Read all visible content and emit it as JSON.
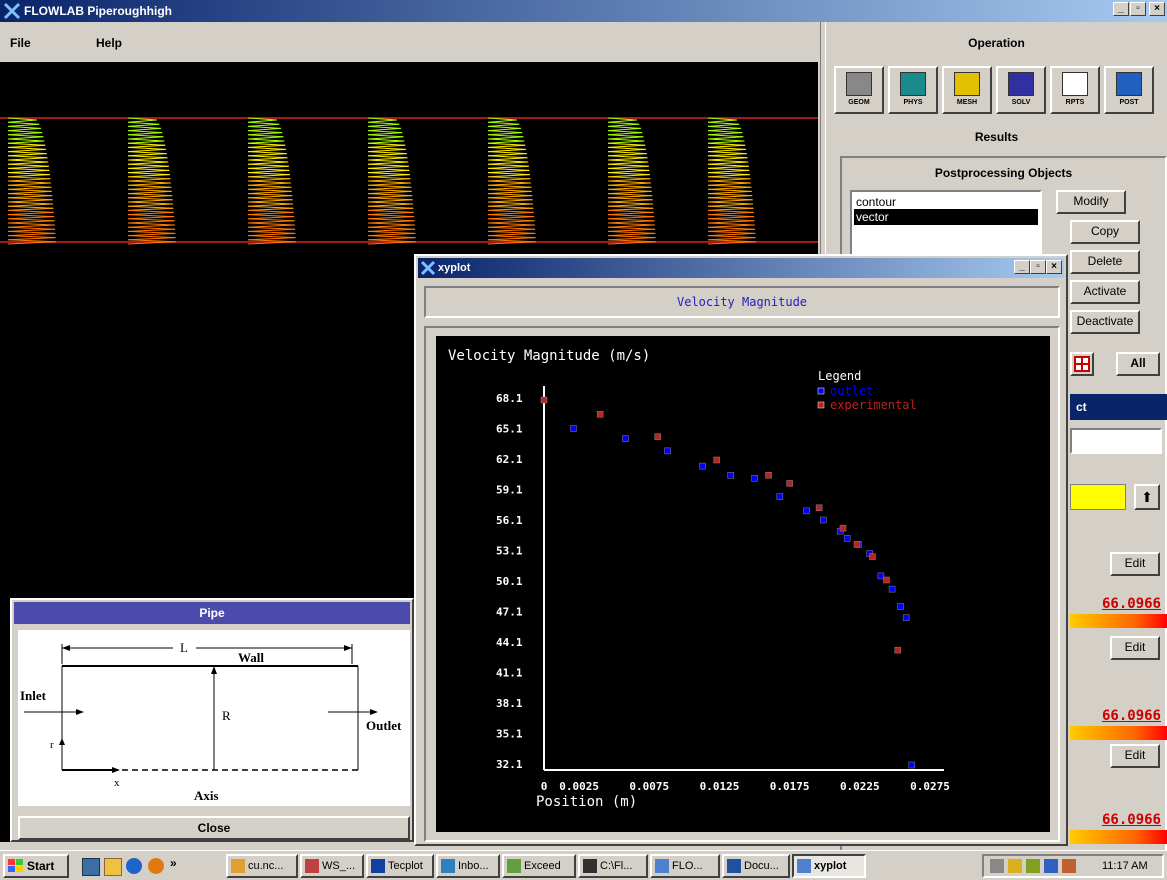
{
  "app": {
    "title": "FLOWLAB  Piperoughhigh",
    "menu": [
      "File",
      "Help"
    ]
  },
  "operation": {
    "title": "Operation",
    "tools": [
      {
        "label": "GEOM",
        "icon": "cube-icon"
      },
      {
        "label": "PHYS",
        "icon": "physics-icon"
      },
      {
        "label": "MESH",
        "icon": "mesh-icon"
      },
      {
        "label": "SOLV",
        "icon": "solver-icon"
      },
      {
        "label": "RPTS",
        "icon": "reports-icon"
      },
      {
        "label": "POST",
        "icon": "post-icon"
      }
    ],
    "results_title": "Results",
    "post_objects_title": "Postprocessing Objects",
    "objects": [
      "contour",
      "vector"
    ],
    "selected_object": "vector",
    "buttons": {
      "modify": "Modify",
      "copy": "Copy",
      "delete": "Delete",
      "activate": "Activate",
      "deactivate": "Deactivate"
    },
    "all_label": "All",
    "partial_header": "ct",
    "edit_label": "Edit",
    "values": [
      "66.0966",
      "66.0966",
      "66.0966"
    ],
    "colors": {
      "value_text": "#cc0000",
      "field_yellow": "#ffff00"
    }
  },
  "pipe": {
    "title": "Pipe",
    "close_label": "Close",
    "labels": {
      "L": "L",
      "wall": "Wall",
      "inlet": "Inlet",
      "R": "R",
      "outlet": "Outlet",
      "r": "r",
      "x": "x",
      "axis": "Axis"
    }
  },
  "xyplot": {
    "title": "xyplot",
    "header": "Velocity Magnitude"
  },
  "chart_data": {
    "type": "scatter",
    "title": "Velocity Magnitude (m/s)",
    "xlabel": "Position (m)",
    "ylabel": "",
    "legend_title": "Legend",
    "legend_position": "top-right",
    "xlim": [
      0,
      0.0275
    ],
    "ylim": [
      32.1,
      68.1
    ],
    "x_ticks": [
      "0",
      "0.0025",
      "0.0075",
      "0.0125",
      "0.0175",
      "0.0225",
      "0.0275"
    ],
    "y_ticks": [
      "68.1",
      "65.1",
      "62.1",
      "59.1",
      "56.1",
      "53.1",
      "50.1",
      "47.1",
      "44.1",
      "41.1",
      "38.1",
      "35.1",
      "32.1"
    ],
    "series": [
      {
        "name": "outlet",
        "color": "#0000ff",
        "x": [
          0.0021,
          0.0058,
          0.0088,
          0.0113,
          0.0133,
          0.015,
          0.0168,
          0.0187,
          0.0199,
          0.0211,
          0.0216,
          0.0224,
          0.0232,
          0.024,
          0.0248,
          0.0254,
          0.0258,
          0.0262
        ],
        "y": [
          65.1,
          64.1,
          62.9,
          61.4,
          60.5,
          60.2,
          58.4,
          57.0,
          56.1,
          55.0,
          54.3,
          53.7,
          52.8,
          50.6,
          49.3,
          47.6,
          46.5,
          32.0
        ]
      },
      {
        "name": "experimental",
        "color": "#bb2222",
        "x": [
          0.0,
          0.004,
          0.0081,
          0.0123,
          0.016,
          0.0175,
          0.0196,
          0.0213,
          0.0223,
          0.0234,
          0.0244,
          0.0252
        ],
        "y": [
          67.9,
          66.5,
          64.3,
          62.0,
          60.5,
          59.7,
          57.3,
          55.3,
          53.7,
          52.5,
          50.2,
          43.3
        ]
      }
    ]
  },
  "taskbar": {
    "start": "Start",
    "items": [
      "cu.nc...",
      "WS_...",
      "Tecplot",
      "Inbo...",
      "Exceed",
      "C:\\Fl...",
      "FLO...",
      "Docu...",
      "xyplot"
    ],
    "clock": "11:17 AM"
  }
}
